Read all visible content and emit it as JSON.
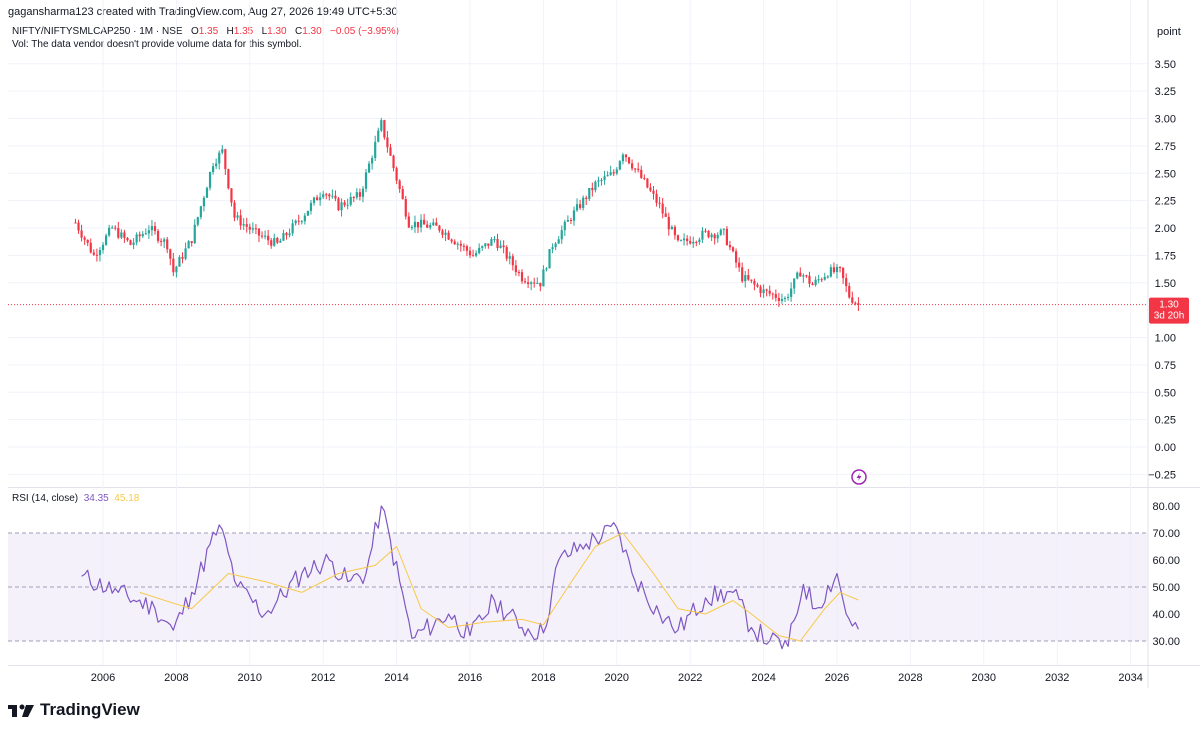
{
  "header": {
    "credit": "gagansharma123 created with TradingView.com, Aug 27, 2026 19:49 UTC+5:30",
    "symbol": "NIFTY/NIFTYSMLCAP250 · 1M · NSE",
    "ohlc": {
      "o_label": "O",
      "o": "1.35",
      "h_label": "H",
      "h": "1.35",
      "l_label": "L",
      "l": "1.30",
      "c_label": "C",
      "c": "1.30",
      "change": "−0.05 (−3.95%)"
    },
    "vol_note": "Vol: The data vendor doesn't provide volume data for this symbol."
  },
  "price_scale": {
    "unit": "point",
    "ticks": [
      "3.50",
      "3.25",
      "3.00",
      "2.75",
      "2.50",
      "2.25",
      "2.00",
      "1.75",
      "1.50",
      "1.00",
      "0.75",
      "0.50",
      "0.25",
      "0.00",
      "−0.25"
    ],
    "last_price": "1.30",
    "countdown": "3d 20h"
  },
  "rsi_legend": {
    "label": "RSI (14, close)",
    "rsi": "34.35",
    "ma": "45.18"
  },
  "rsi_scale": {
    "ticks": [
      "80.00",
      "70.00",
      "60.00",
      "50.00",
      "40.00",
      "30.00"
    ]
  },
  "time_axis": {
    "ticks": [
      "2006",
      "2008",
      "2010",
      "2012",
      "2014",
      "2016",
      "2018",
      "2020",
      "2022",
      "2024",
      "2026",
      "2028",
      "2030",
      "2032",
      "2034"
    ]
  },
  "colors": {
    "up": "#26a69a",
    "down": "#f23645",
    "rsi": "#7e57c2",
    "rsi_ma": "#f7c948",
    "band": "#ede7f6",
    "last": "#f23645"
  },
  "icons": {
    "flash": "lightning-icon",
    "logo": "tradingview-logo-icon"
  },
  "brand": "TradingView",
  "chart_data": [
    {
      "type": "candlestick",
      "title": "NIFTY/NIFTYSMLCAP250 · 1M · NSE",
      "ylim": [
        -0.3,
        3.6
      ],
      "x_range": [
        "2005-01",
        "2034-06"
      ],
      "keypoints": [
        {
          "t": "2005-04",
          "v": 2.05
        },
        {
          "t": "2005-10",
          "v": 1.75
        },
        {
          "t": "2006-04",
          "v": 2.0
        },
        {
          "t": "2006-10",
          "v": 1.85
        },
        {
          "t": "2007-04",
          "v": 2.0
        },
        {
          "t": "2007-10",
          "v": 1.85
        },
        {
          "t": "2007-12",
          "v": 1.6
        },
        {
          "t": "2008-06",
          "v": 1.9
        },
        {
          "t": "2009-01",
          "v": 2.6
        },
        {
          "t": "2009-04",
          "v": 2.7
        },
        {
          "t": "2009-08",
          "v": 2.1
        },
        {
          "t": "2010-03",
          "v": 1.95
        },
        {
          "t": "2010-10",
          "v": 1.85
        },
        {
          "t": "2011-06",
          "v": 2.1
        },
        {
          "t": "2012-01",
          "v": 2.35
        },
        {
          "t": "2012-06",
          "v": 2.2
        },
        {
          "t": "2013-01",
          "v": 2.3
        },
        {
          "t": "2013-08",
          "v": 2.95
        },
        {
          "t": "2013-11",
          "v": 2.65
        },
        {
          "t": "2014-05",
          "v": 2.05
        },
        {
          "t": "2015-03",
          "v": 2.0
        },
        {
          "t": "2016-02",
          "v": 1.75
        },
        {
          "t": "2016-09",
          "v": 1.9
        },
        {
          "t": "2017-06",
          "v": 1.55
        },
        {
          "t": "2017-12",
          "v": 1.5
        },
        {
          "t": "2018-04",
          "v": 1.85
        },
        {
          "t": "2018-10",
          "v": 2.1
        },
        {
          "t": "2019-06",
          "v": 2.4
        },
        {
          "t": "2019-12",
          "v": 2.5
        },
        {
          "t": "2020-03",
          "v": 2.7
        },
        {
          "t": "2020-08",
          "v": 2.5
        },
        {
          "t": "2021-03",
          "v": 2.2
        },
        {
          "t": "2021-09",
          "v": 1.85
        },
        {
          "t": "2022-06",
          "v": 1.95
        },
        {
          "t": "2022-12",
          "v": 1.95
        },
        {
          "t": "2023-06",
          "v": 1.55
        },
        {
          "t": "2024-01",
          "v": 1.42
        },
        {
          "t": "2024-08",
          "v": 1.35
        },
        {
          "t": "2025-01",
          "v": 1.6
        },
        {
          "t": "2025-05",
          "v": 1.48
        },
        {
          "t": "2025-10",
          "v": 1.6
        },
        {
          "t": "2026-02",
          "v": 1.6
        },
        {
          "t": "2026-05",
          "v": 1.38
        },
        {
          "t": "2026-08",
          "v": 1.3
        }
      ],
      "last": 1.3
    },
    {
      "type": "line",
      "title": "RSI (14, close)",
      "ylim": [
        20,
        85
      ],
      "bands": [
        30,
        50,
        70
      ],
      "series": [
        {
          "name": "RSI",
          "points": [
            {
              "t": "2005-06",
              "v": 54
            },
            {
              "t": "2006-06",
              "v": 48
            },
            {
              "t": "2007-06",
              "v": 42
            },
            {
              "t": "2007-12",
              "v": 34
            },
            {
              "t": "2008-06",
              "v": 48
            },
            {
              "t": "2009-03",
              "v": 73
            },
            {
              "t": "2009-09",
              "v": 50
            },
            {
              "t": "2010-06",
              "v": 40
            },
            {
              "t": "2011-06",
              "v": 55
            },
            {
              "t": "2012-03",
              "v": 60
            },
            {
              "t": "2012-09",
              "v": 52
            },
            {
              "t": "2013-03",
              "v": 55
            },
            {
              "t": "2013-08",
              "v": 80
            },
            {
              "t": "2014-02",
              "v": 52
            },
            {
              "t": "2014-06",
              "v": 31
            },
            {
              "t": "2015-06",
              "v": 40
            },
            {
              "t": "2016-01",
              "v": 32
            },
            {
              "t": "2016-09",
              "v": 45
            },
            {
              "t": "2017-06",
              "v": 35
            },
            {
              "t": "2018-01",
              "v": 33
            },
            {
              "t": "2018-06",
              "v": 60
            },
            {
              "t": "2019-03",
              "v": 66
            },
            {
              "t": "2020-01",
              "v": 72
            },
            {
              "t": "2020-06",
              "v": 55
            },
            {
              "t": "2021-03",
              "v": 40
            },
            {
              "t": "2021-09",
              "v": 34
            },
            {
              "t": "2022-06",
              "v": 46
            },
            {
              "t": "2023-03",
              "v": 48
            },
            {
              "t": "2023-09",
              "v": 35
            },
            {
              "t": "2024-03",
              "v": 30
            },
            {
              "t": "2024-09",
              "v": 28
            },
            {
              "t": "2025-02",
              "v": 51
            },
            {
              "t": "2025-06",
              "v": 42
            },
            {
              "t": "2026-01",
              "v": 55
            },
            {
              "t": "2026-04",
              "v": 40
            },
            {
              "t": "2026-08",
              "v": 34.35
            }
          ]
        },
        {
          "name": "MA",
          "points": [
            {
              "t": "2007-01",
              "v": 48
            },
            {
              "t": "2007-12",
              "v": 44
            },
            {
              "t": "2008-06",
              "v": 42
            },
            {
              "t": "2009-06",
              "v": 55
            },
            {
              "t": "2010-06",
              "v": 52
            },
            {
              "t": "2011-06",
              "v": 48
            },
            {
              "t": "2012-06",
              "v": 55
            },
            {
              "t": "2013-06",
              "v": 58
            },
            {
              "t": "2014-01",
              "v": 65
            },
            {
              "t": "2014-09",
              "v": 42
            },
            {
              "t": "2015-06",
              "v": 35
            },
            {
              "t": "2016-06",
              "v": 37
            },
            {
              "t": "2017-06",
              "v": 38
            },
            {
              "t": "2018-01",
              "v": 36
            },
            {
              "t": "2018-09",
              "v": 50
            },
            {
              "t": "2019-06",
              "v": 65
            },
            {
              "t": "2020-03",
              "v": 70
            },
            {
              "t": "2021-01",
              "v": 55
            },
            {
              "t": "2021-09",
              "v": 42
            },
            {
              "t": "2022-06",
              "v": 40
            },
            {
              "t": "2023-03",
              "v": 45
            },
            {
              "t": "2023-09",
              "v": 40
            },
            {
              "t": "2024-06",
              "v": 32
            },
            {
              "t": "2025-01",
              "v": 30
            },
            {
              "t": "2025-09",
              "v": 42
            },
            {
              "t": "2026-02",
              "v": 48
            },
            {
              "t": "2026-08",
              "v": 45.18
            }
          ]
        }
      ]
    }
  ]
}
